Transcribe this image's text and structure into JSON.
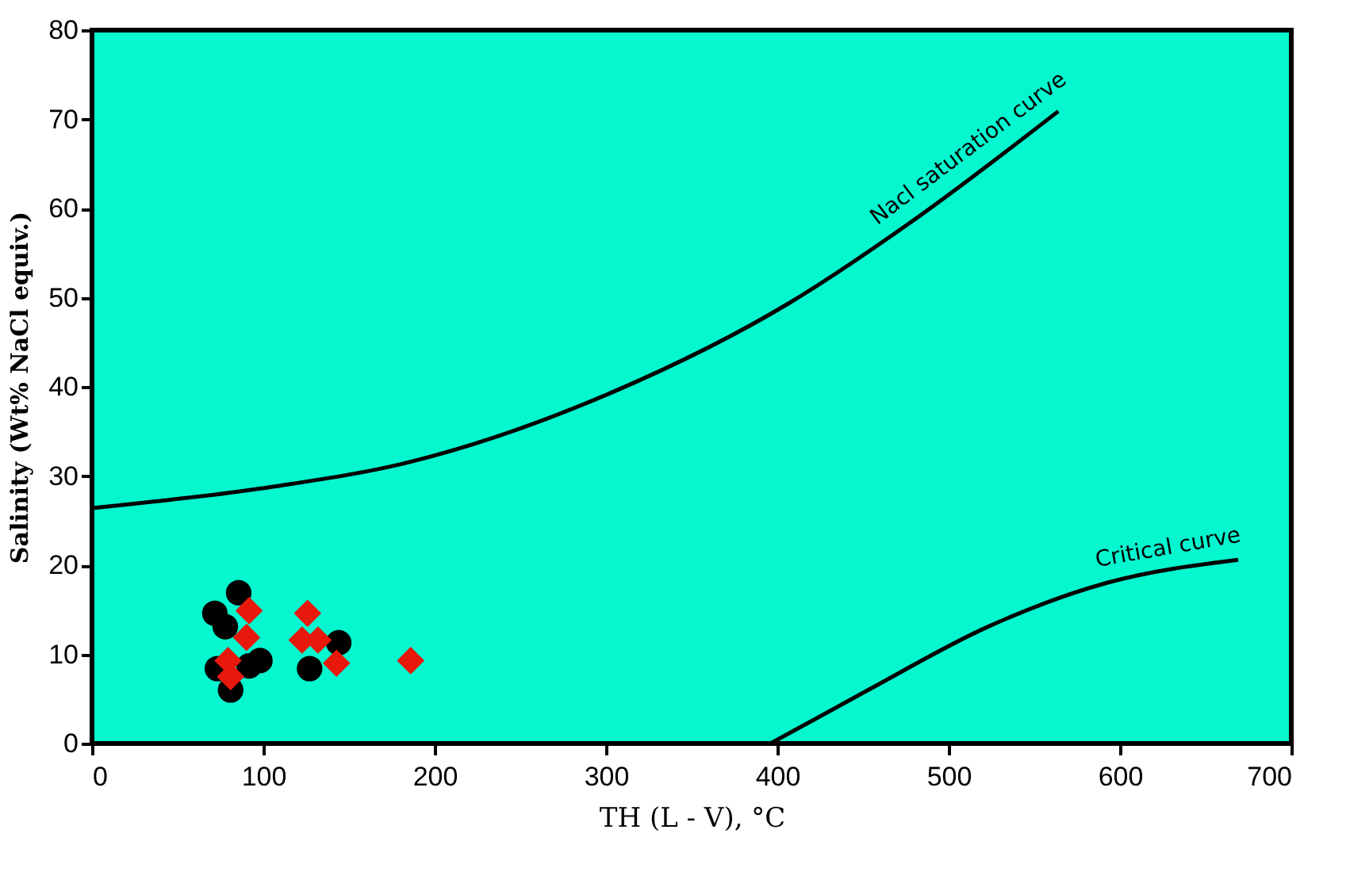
{
  "chart_data": {
    "type": "scatter",
    "xlabel": "TH (L - V), °C",
    "ylabel": "Salinity (Wt% NaCl equiv.)",
    "xlim": [
      0,
      700
    ],
    "xticks": [
      0,
      100,
      200,
      300,
      400,
      500,
      600,
      700
    ],
    "ylim": [
      0,
      80
    ],
    "yticks": [
      0,
      10,
      20,
      30,
      40,
      50,
      60,
      70,
      80
    ],
    "grid": false,
    "series": [
      {
        "marker": "circle",
        "color": "#000000",
        "x": [
          85.6,
          71.7,
          77.8,
          73.2,
          98,
          80.9,
          127,
          144,
          91.7
        ],
        "values": [
          16.9,
          14.6,
          13.1,
          8.4,
          9.3,
          6.0,
          8.4,
          11.3,
          8.7
        ]
      },
      {
        "marker": "diamond",
        "color": "#e8180c",
        "x": [
          91.7,
          90.2,
          125.8,
          122.6,
          131.9,
          79.4,
          80.9,
          142.7,
          186
        ],
        "values": [
          14.9,
          11.9,
          14.6,
          11.6,
          11.6,
          9.3,
          7.5,
          9.0,
          9.3
        ]
      },
      {
        "type": "line",
        "marker": "none",
        "line_style": "solid",
        "color": "#000000",
        "x": [
          0,
          105.7,
          184,
          305,
          407,
          476,
          564
        ],
        "values": [
          26.4,
          28.8,
          31.5,
          39.5,
          49.4,
          58.2,
          70.9
        ]
      },
      {
        "type": "line",
        "marker": "none",
        "line_style": "solid",
        "color": "#000000",
        "x": [
          396,
          453,
          523,
          592,
          669
        ],
        "values": [
          0,
          6.0,
          13.1,
          18,
          20.6
        ]
      }
    ],
    "annotations": [
      "Nacl saturation curve",
      "Critical curve"
    ]
  }
}
